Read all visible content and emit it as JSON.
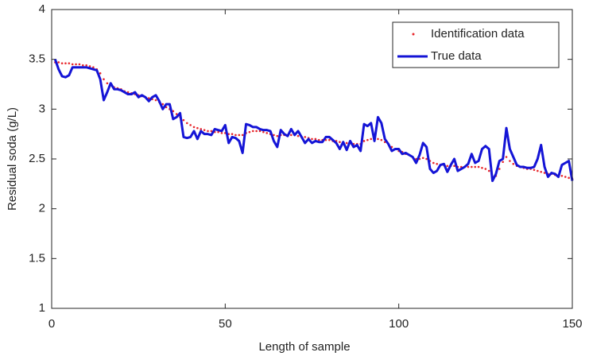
{
  "chart_data": {
    "type": "line",
    "x_label": "Length of sample",
    "y_label": "Residual soda  (g/L)",
    "x": [
      1,
      2,
      3,
      4,
      5,
      6,
      7,
      8,
      9,
      10,
      11,
      12,
      13,
      14,
      15,
      16,
      17,
      18,
      19,
      20,
      21,
      22,
      23,
      24,
      25,
      26,
      27,
      28,
      29,
      30,
      31,
      32,
      33,
      34,
      35,
      36,
      37,
      38,
      39,
      40,
      41,
      42,
      43,
      44,
      45,
      46,
      47,
      48,
      49,
      50,
      51,
      52,
      53,
      54,
      55,
      56,
      57,
      58,
      59,
      60,
      61,
      62,
      63,
      64,
      65,
      66,
      67,
      68,
      69,
      70,
      71,
      72,
      73,
      74,
      75,
      76,
      77,
      78,
      79,
      80,
      81,
      82,
      83,
      84,
      85,
      86,
      87,
      88,
      89,
      90,
      91,
      92,
      93,
      94,
      95,
      96,
      97,
      98,
      99,
      100,
      101,
      102,
      103,
      104,
      105,
      106,
      107,
      108,
      109,
      110,
      111,
      112,
      113,
      114,
      115,
      116,
      117,
      118,
      119,
      120,
      121,
      122,
      123,
      124,
      125,
      126,
      127,
      128,
      129,
      130,
      131,
      132,
      133,
      134,
      135,
      136,
      137,
      138,
      139,
      140,
      141,
      142,
      143,
      144,
      145,
      146,
      147,
      148,
      149,
      150
    ],
    "series": [
      {
        "name": "Identification data",
        "color": "#e8262b",
        "style": "dotted",
        "values": [
          3.47,
          3.47,
          3.46,
          3.46,
          3.46,
          3.45,
          3.45,
          3.45,
          3.44,
          3.44,
          3.43,
          3.42,
          3.4,
          3.36,
          3.3,
          3.26,
          3.24,
          3.22,
          3.21,
          3.2,
          3.18,
          3.17,
          3.16,
          3.15,
          3.14,
          3.13,
          3.12,
          3.11,
          3.1,
          3.09,
          3.07,
          3.05,
          3.02,
          3.0,
          2.98,
          2.95,
          2.92,
          2.89,
          2.86,
          2.84,
          2.82,
          2.81,
          2.8,
          2.79,
          2.78,
          2.78,
          2.77,
          2.77,
          2.76,
          2.76,
          2.75,
          2.75,
          2.74,
          2.74,
          2.74,
          2.76,
          2.77,
          2.78,
          2.78,
          2.78,
          2.77,
          2.76,
          2.75,
          2.74,
          2.73,
          2.74,
          2.74,
          2.74,
          2.74,
          2.74,
          2.73,
          2.72,
          2.72,
          2.71,
          2.7,
          2.7,
          2.69,
          2.69,
          2.69,
          2.69,
          2.68,
          2.68,
          2.67,
          2.67,
          2.66,
          2.66,
          2.65,
          2.65,
          2.65,
          2.68,
          2.69,
          2.7,
          2.69,
          2.7,
          2.69,
          2.67,
          2.65,
          2.62,
          2.6,
          2.58,
          2.57,
          2.55,
          2.54,
          2.52,
          2.5,
          2.5,
          2.51,
          2.5,
          2.48,
          2.46,
          2.45,
          2.44,
          2.44,
          2.43,
          2.43,
          2.43,
          2.42,
          2.42,
          2.42,
          2.42,
          2.42,
          2.42,
          2.42,
          2.41,
          2.4,
          2.38,
          2.32,
          2.33,
          2.4,
          2.47,
          2.52,
          2.48,
          2.45,
          2.43,
          2.42,
          2.41,
          2.4,
          2.4,
          2.39,
          2.38,
          2.37,
          2.36,
          2.35,
          2.35,
          2.34,
          2.33,
          2.33,
          2.32,
          2.31,
          2.3
        ]
      },
      {
        "name": "True data",
        "color": "#1414d6",
        "style": "solid",
        "values": [
          3.5,
          3.4,
          3.33,
          3.32,
          3.34,
          3.42,
          3.42,
          3.42,
          3.42,
          3.42,
          3.41,
          3.4,
          3.39,
          3.3,
          3.09,
          3.17,
          3.26,
          3.2,
          3.2,
          3.19,
          3.17,
          3.15,
          3.15,
          3.17,
          3.12,
          3.14,
          3.12,
          3.08,
          3.12,
          3.14,
          3.08,
          3.0,
          3.05,
          3.05,
          2.9,
          2.92,
          2.96,
          2.72,
          2.71,
          2.72,
          2.78,
          2.7,
          2.78,
          2.75,
          2.75,
          2.74,
          2.8,
          2.79,
          2.78,
          2.84,
          2.66,
          2.72,
          2.71,
          2.68,
          2.56,
          2.85,
          2.84,
          2.82,
          2.82,
          2.8,
          2.79,
          2.79,
          2.78,
          2.68,
          2.62,
          2.79,
          2.75,
          2.73,
          2.8,
          2.74,
          2.78,
          2.72,
          2.66,
          2.7,
          2.66,
          2.68,
          2.67,
          2.67,
          2.72,
          2.72,
          2.69,
          2.66,
          2.6,
          2.67,
          2.59,
          2.68,
          2.62,
          2.64,
          2.58,
          2.85,
          2.83,
          2.86,
          2.68,
          2.92,
          2.86,
          2.7,
          2.65,
          2.58,
          2.6,
          2.6,
          2.55,
          2.56,
          2.54,
          2.52,
          2.46,
          2.54,
          2.66,
          2.62,
          2.4,
          2.36,
          2.38,
          2.44,
          2.45,
          2.37,
          2.44,
          2.5,
          2.38,
          2.4,
          2.42,
          2.45,
          2.55,
          2.46,
          2.48,
          2.6,
          2.63,
          2.6,
          2.28,
          2.35,
          2.48,
          2.5,
          2.81,
          2.6,
          2.52,
          2.44,
          2.42,
          2.42,
          2.41,
          2.41,
          2.42,
          2.5,
          2.64,
          2.42,
          2.32,
          2.36,
          2.35,
          2.32,
          2.44,
          2.46,
          2.48,
          2.28
        ]
      }
    ],
    "xlim": [
      0,
      150
    ],
    "xticks": [
      0,
      50,
      100,
      150
    ],
    "ylim": [
      1,
      4
    ],
    "yticks": [
      1,
      1.5,
      2,
      2.5,
      3,
      3.5,
      4
    ],
    "grid": false,
    "legend": "upper right"
  }
}
